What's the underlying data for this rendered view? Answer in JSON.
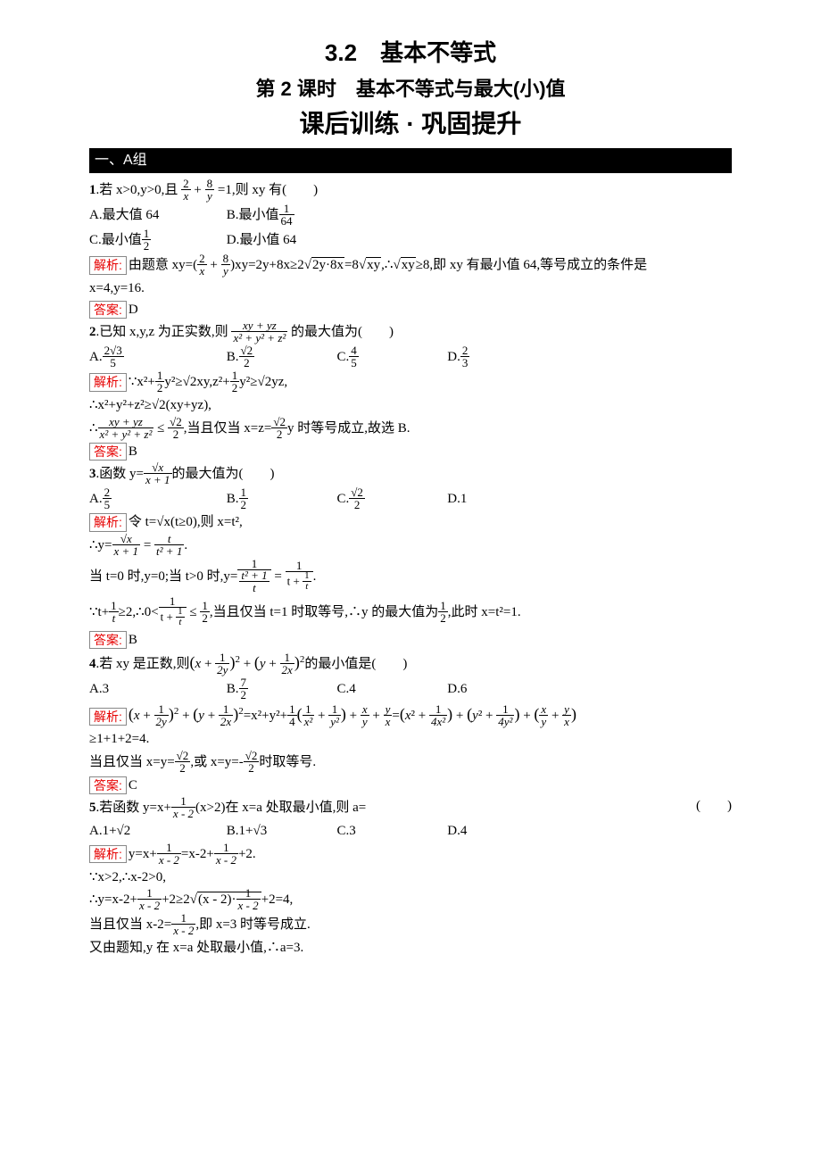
{
  "titles": {
    "main": "3.2　基本不等式",
    "sub": "第 2 课时　基本不等式与最大(小)值",
    "training": "课后训练 · 巩固提升"
  },
  "section_bar": "一、A组",
  "labels": {
    "analysis": "解析:",
    "answer": "答案:"
  },
  "q1": {
    "num": "1",
    "stem_pre": ".若 x>0,y>0,且",
    "stem_frac1_num": "2",
    "stem_frac1_den": "x",
    "stem_plus": " + ",
    "stem_frac2_num": "8",
    "stem_frac2_den": "y",
    "stem_post": "=1,则 xy 有(　　)",
    "optA": "A.最大值 64",
    "optB_pre": "B.最小值",
    "optB_num": "1",
    "optB_den": "64",
    "optC_pre": "C.最小值",
    "optC_num": "1",
    "optC_den": "2",
    "optD": "D.最小值 64",
    "ana_pre": "由题意 xy=",
    "ana_mid1_l": "(",
    "ana_f1n": "2",
    "ana_f1d": "x",
    "ana_plus": " + ",
    "ana_f2n": "8",
    "ana_f2d": "y",
    "ana_mid1_r": ")",
    "ana_mid2": "xy=2y+8x≥2",
    "ana_sqrt1": "2y·8x",
    "ana_mid3": "=8",
    "ana_sqrt2": "xy",
    "ana_mid4": ",∴",
    "ana_sqrt3": "xy",
    "ana_post": "≥8,即 xy 有最小值 64,等号成立的条件是",
    "ana_line2": "x=4,y=16.",
    "answer": "D"
  },
  "q2": {
    "num": "2",
    "stem_pre": ".已知 x,y,z 为正实数,则",
    "stem_num": "xy + yz",
    "stem_den": "x² + y² + z²",
    "stem_post": "的最大值为(　　)",
    "optA_pre": "A.",
    "optA_num": "2√3",
    "optA_den": "5",
    "optB_pre": "B.",
    "optB_num": "√2",
    "optB_den": "2",
    "optC_pre": "C.",
    "optC_num": "4",
    "optC_den": "5",
    "optD_pre": "D.",
    "optD_num": "2",
    "optD_den": "3",
    "ana_l1_pre": "∵x²+",
    "ana_l1_f1n": "1",
    "ana_l1_f1d": "2",
    "ana_l1_m1": "y²≥√2xy,z²+",
    "ana_l1_f2n": "1",
    "ana_l1_f2d": "2",
    "ana_l1_post": "y²≥√2yz,",
    "ana_l2": "∴x²+y²+z²≥√2(xy+yz),",
    "ana_l3_pre": "∴",
    "ana_l3_fn": "xy + yz",
    "ana_l3_fd": "x² + y² + z²",
    "ana_l3_m": " ≤ ",
    "ana_l3_gn": "√2",
    "ana_l3_gd": "2",
    "ana_l3_m2": ",当且仅当 x=z=",
    "ana_l3_hn": "√2",
    "ana_l3_hd": "2",
    "ana_l3_post": "y 时等号成立,故选 B.",
    "answer": "B"
  },
  "q3": {
    "num": "3",
    "stem_pre": ".函数 y=",
    "stem_num": "√x",
    "stem_den": "x + 1",
    "stem_post": "的最大值为(　　)",
    "optA_pre": "A.",
    "optA_num": "2",
    "optA_den": "5",
    "optB_pre": "B.",
    "optB_num": "1",
    "optB_den": "2",
    "optC_pre": "C.",
    "optC_num": "√2",
    "optC_den": "2",
    "optD": "D.1",
    "ana_l1": "令 t=√x(t≥0),则 x=t²,",
    "ana_l2_pre": "∴y=",
    "ana_l2_f1n": "√x",
    "ana_l2_f1d": "x + 1",
    "ana_l2_eq": " = ",
    "ana_l2_f2n": "t",
    "ana_l2_f2d": "t² + 1",
    "ana_l2_post": ".",
    "ana_l3_pre": "当 t=0 时,y=0;当 t>0 时,y=",
    "ana_l3_f1n": "1",
    "ana_l3_f1d_num": "t² + 1",
    "ana_l3_f1d_den": "t",
    "ana_l3_eq": " = ",
    "ana_l3_f2n": "1",
    "ana_l3_f2d_pre": "t + ",
    "ana_l3_f2d_num": "1",
    "ana_l3_f2d_den": "t",
    "ana_l3_post": ".",
    "ana_l4_pre": "∵t+",
    "ana_l4_f1n": "1",
    "ana_l4_f1d": "t",
    "ana_l4_m1": "≥2,∴0<",
    "ana_l4_f2n": "1",
    "ana_l4_f2d_pre": "t + ",
    "ana_l4_f2d_num": "1",
    "ana_l4_f2d_den": "t",
    "ana_l4_m2": " ≤ ",
    "ana_l4_f3n": "1",
    "ana_l4_f3d": "2",
    "ana_l4_m3": ",当且仅当 t=1 时取等号,∴y 的最大值为",
    "ana_l4_f4n": "1",
    "ana_l4_f4d": "2",
    "ana_l4_post": ",此时 x=t²=1.",
    "answer": "B"
  },
  "q4": {
    "num": "4",
    "stem_pre": ".若 xy 是正数,则",
    "stem_a_l": "(x + ",
    "stem_a_fn": "1",
    "stem_a_fd": "2y",
    "stem_a_r": ")",
    "stem_plus": " + ",
    "stem_b_l": "(y + ",
    "stem_b_fn": "1",
    "stem_b_fd": "2x",
    "stem_b_r": ")",
    "stem_post": "的最小值是(　　)",
    "optA": "A.3",
    "optB_pre": "B.",
    "optB_num": "7",
    "optB_den": "2",
    "optC": "C.4",
    "optD": "D.6",
    "ana_pre_l": "(x + ",
    "ana_pre_fn1": "1",
    "ana_pre_fd1": "2y",
    "ana_pre_r": ")",
    "ana_plus1": " + ",
    "ana_pre2_l": "(y + ",
    "ana_pre2_fn": "1",
    "ana_pre2_fd": "2x",
    "ana_pre2_r": ")",
    "ana_eq": "=x²+y²+",
    "ana_fq_n": "1",
    "ana_fq_d": "4",
    "ana_lp": "(",
    "ana_fa_n": "1",
    "ana_fa_d": "x²",
    "ana_plus2": " + ",
    "ana_fb_n": "1",
    "ana_fb_d": "y²",
    "ana_rp": ")",
    "ana_plus3": " + ",
    "ana_fc_n": "x",
    "ana_fc_d": "y",
    "ana_plus4": " + ",
    "ana_fd_n": "y",
    "ana_fd_d": "x",
    "ana_eq2": "=",
    "ana_grp1_l": "(x² + ",
    "ana_g1_n": "1",
    "ana_g1_d": "4x²",
    "ana_grp1_r": ")",
    "ana_plus5": " + ",
    "ana_grp2_l": "(y² + ",
    "ana_g2_n": "1",
    "ana_g2_d": "4y²",
    "ana_grp2_r": ")",
    "ana_plus6": " + ",
    "ana_grp3_l": "(",
    "ana_g3a_n": "x",
    "ana_g3a_d": "y",
    "ana_plus7": " + ",
    "ana_g3b_n": "y",
    "ana_g3b_d": "x",
    "ana_grp3_r": ")",
    "ana_l2": "≥1+1+2=4.",
    "ana_l3_pre": "当且仅当 x=y=",
    "ana_l3_f1n": "√2",
    "ana_l3_f1d": "2",
    "ana_l3_m": ",或 x=y=-",
    "ana_l3_f2n": "√2",
    "ana_l3_f2d": "2",
    "ana_l3_post": "时取等号.",
    "answer": "C"
  },
  "q5": {
    "num": "5",
    "stem_pre": ".若函数 y=x+",
    "stem_fn": "1",
    "stem_fd": "x - 2",
    "stem_post": "(x>2)在 x=a 处取最小值,则 a=",
    "stem_paren": "(　　)",
    "optA": "A.1+√2",
    "optB": "B.1+√3",
    "optC": "C.3",
    "optD": "D.4",
    "ana_l1_pre": "y=x+",
    "ana_l1_f1n": "1",
    "ana_l1_f1d": "x - 2",
    "ana_l1_m": "=x-2+",
    "ana_l1_f2n": "1",
    "ana_l1_f2d": "x - 2",
    "ana_l1_post": "+2.",
    "ana_l2": "∵x>2,∴x-2>0,",
    "ana_l3_pre": "∴y=x-2+",
    "ana_l3_f1n": "1",
    "ana_l3_f1d": "x - 2",
    "ana_l3_m1": "+2≥2",
    "ana_l3_sqrt_pre": "(x - 2)·",
    "ana_l3_sqrt_fn": "1",
    "ana_l3_sqrt_fd": "x - 2",
    "ana_l3_post": "+2=4,",
    "ana_l4_pre": "当且仅当 x-2=",
    "ana_l4_fn": "1",
    "ana_l4_fd": "x - 2",
    "ana_l4_post": ",即 x=3 时等号成立.",
    "ana_l5": "又由题知,y 在 x=a 处取最小值,∴a=3."
  }
}
